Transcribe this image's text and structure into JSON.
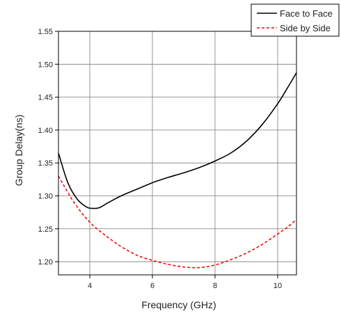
{
  "chart_data": {
    "type": "line",
    "xlabel": "Frequency (GHz)",
    "ylabel": "Group Delay(ns)",
    "xlim": [
      3.0,
      10.6
    ],
    "ylim": [
      1.18,
      1.55
    ],
    "x_ticks": [
      4,
      6,
      8,
      10
    ],
    "x_tick_labels": [
      "4",
      "6",
      "8",
      "10"
    ],
    "y_ticks": [
      1.2,
      1.25,
      1.3,
      1.35,
      1.4,
      1.45,
      1.5,
      1.55
    ],
    "y_tick_labels": [
      "1.20",
      "1.25",
      "1.30",
      "1.35",
      "1.40",
      "1.45",
      "1.50",
      "1.55"
    ],
    "grid": true,
    "legend_position": "top-right",
    "series": [
      {
        "name": "Face to Face",
        "color": "#000000",
        "style": "solid",
        "x": [
          3.0,
          3.3,
          3.6,
          3.9,
          4.1,
          4.3,
          4.6,
          5.0,
          5.5,
          6.0,
          6.5,
          7.0,
          7.5,
          8.0,
          8.5,
          9.0,
          9.5,
          10.0,
          10.3,
          10.6
        ],
        "y": [
          1.365,
          1.32,
          1.295,
          1.283,
          1.281,
          1.282,
          1.29,
          1.3,
          1.31,
          1.32,
          1.328,
          1.335,
          1.343,
          1.353,
          1.365,
          1.383,
          1.408,
          1.44,
          1.463,
          1.487
        ]
      },
      {
        "name": "Side by Side",
        "color": "#ff0000",
        "style": "dashed",
        "x": [
          3.0,
          3.5,
          4.0,
          4.5,
          5.0,
          5.5,
          6.0,
          6.5,
          7.0,
          7.5,
          8.0,
          8.5,
          9.0,
          9.5,
          10.0,
          10.3,
          10.6
        ],
        "y": [
          1.33,
          1.29,
          1.26,
          1.24,
          1.223,
          1.21,
          1.202,
          1.196,
          1.192,
          1.191,
          1.195,
          1.203,
          1.213,
          1.226,
          1.242,
          1.252,
          1.264
        ]
      }
    ]
  }
}
